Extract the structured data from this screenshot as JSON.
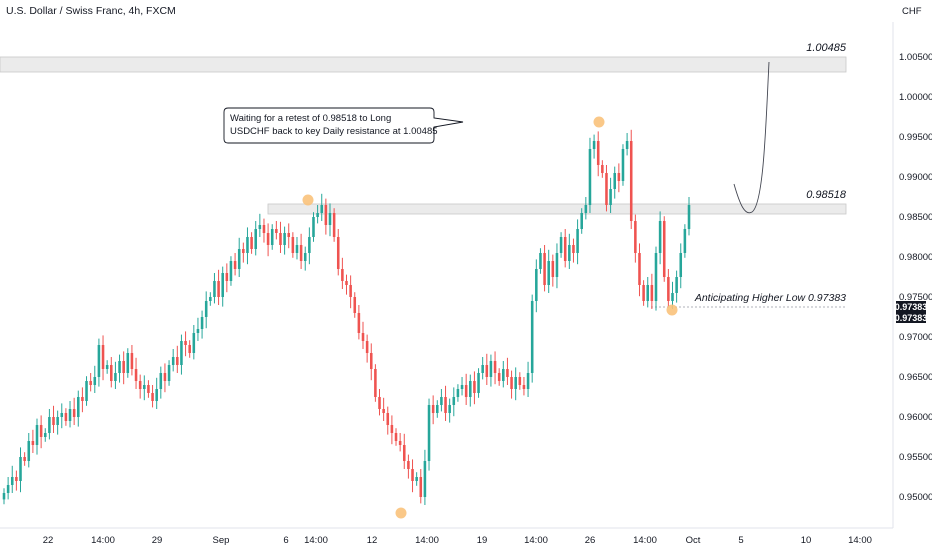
{
  "header": {
    "title": "U.S. Dollar / Swiss Franc, 4h, FXCM",
    "currency": "CHF"
  },
  "colors": {
    "bull": "#26a69a",
    "bear": "#ef5350",
    "zone": "#ebebeb",
    "marker": "#f9c27b",
    "price_tag": "#131722"
  },
  "chart_data": {
    "type": "candlestick",
    "ylim": [
      0.9475,
      1.0075
    ],
    "y_ticks": [
      "0.95000",
      "0.95500",
      "0.96000",
      "0.96500",
      "0.97000",
      "0.97500",
      "0.98000",
      "0.98500",
      "0.99000",
      "0.99500",
      "1.00000",
      "1.00500"
    ],
    "x_ticks": [
      "22",
      "14:00",
      "29",
      "Sep",
      "6",
      "14:00",
      "12",
      "14:00",
      "19",
      "14:00",
      "26",
      "14:00",
      "Oct",
      "5",
      "10",
      "14:00"
    ],
    "levels": [
      {
        "name": "1.00485",
        "value": 1.00485
      },
      {
        "name": "0.98518",
        "value": 0.98518
      },
      {
        "name": "Anticipating Higher Low 0.97383",
        "value": 0.97383
      }
    ],
    "annotation": "Waiting for a retest of 0.98518 to Long USDCHF back to key Daily resistance at 1.00485",
    "price_labels": [
      "0.97383",
      "0.97383"
    ],
    "closes": [
      0.9505,
      0.9515,
      0.9525,
      0.952,
      0.955,
      0.9545,
      0.957,
      0.9565,
      0.959,
      0.9575,
      0.958,
      0.96,
      0.959,
      0.96,
      0.9605,
      0.9595,
      0.961,
      0.96,
      0.9625,
      0.962,
      0.9645,
      0.964,
      0.965,
      0.969,
      0.966,
      0.9665,
      0.9645,
      0.9655,
      0.967,
      0.9655,
      0.968,
      0.966,
      0.9645,
      0.9635,
      0.964,
      0.963,
      0.962,
      0.9635,
      0.9655,
      0.9645,
      0.9665,
      0.9675,
      0.9665,
      0.9695,
      0.969,
      0.968,
      0.9705,
      0.971,
      0.9725,
      0.9745,
      0.975,
      0.977,
      0.975,
      0.978,
      0.977,
      0.9795,
      0.9785,
      0.981,
      0.9805,
      0.9825,
      0.981,
      0.9835,
      0.984,
      0.983,
      0.9815,
      0.9835,
      0.983,
      0.9815,
      0.983,
      0.9825,
      0.9805,
      0.9815,
      0.9795,
      0.9805,
      0.9825,
      0.985,
      0.9855,
      0.9865,
      0.984,
      0.9855,
      0.9825,
      0.9785,
      0.977,
      0.9765,
      0.975,
      0.973,
      0.9705,
      0.9695,
      0.968,
      0.966,
      0.9625,
      0.961,
      0.9605,
      0.959,
      0.958,
      0.957,
      0.9565,
      0.9545,
      0.9535,
      0.952,
      0.9525,
      0.95,
      0.9545,
      0.9615,
      0.9605,
      0.9615,
      0.9625,
      0.9605,
      0.9615,
      0.9625,
      0.9635,
      0.964,
      0.9625,
      0.9645,
      0.963,
      0.9655,
      0.9665,
      0.965,
      0.967,
      0.9655,
      0.9645,
      0.966,
      0.965,
      0.9635,
      0.965,
      0.964,
      0.9635,
      0.9655,
      0.9745,
      0.9785,
      0.9805,
      0.9765,
      0.9795,
      0.9775,
      0.9805,
      0.9825,
      0.9795,
      0.9815,
      0.9805,
      0.9835,
      0.9855,
      0.9865,
      0.9935,
      0.9945,
      0.9915,
      0.9905,
      0.9865,
      0.9885,
      0.9905,
      0.9895,
      0.9935,
      0.9945,
      0.9845,
      0.9805,
      0.9765,
      0.9745,
      0.9765,
      0.9745,
      0.9805,
      0.9845,
      0.9775,
      0.9745,
      0.9755,
      0.9775,
      0.9805,
      0.9835,
      0.9865
    ]
  }
}
